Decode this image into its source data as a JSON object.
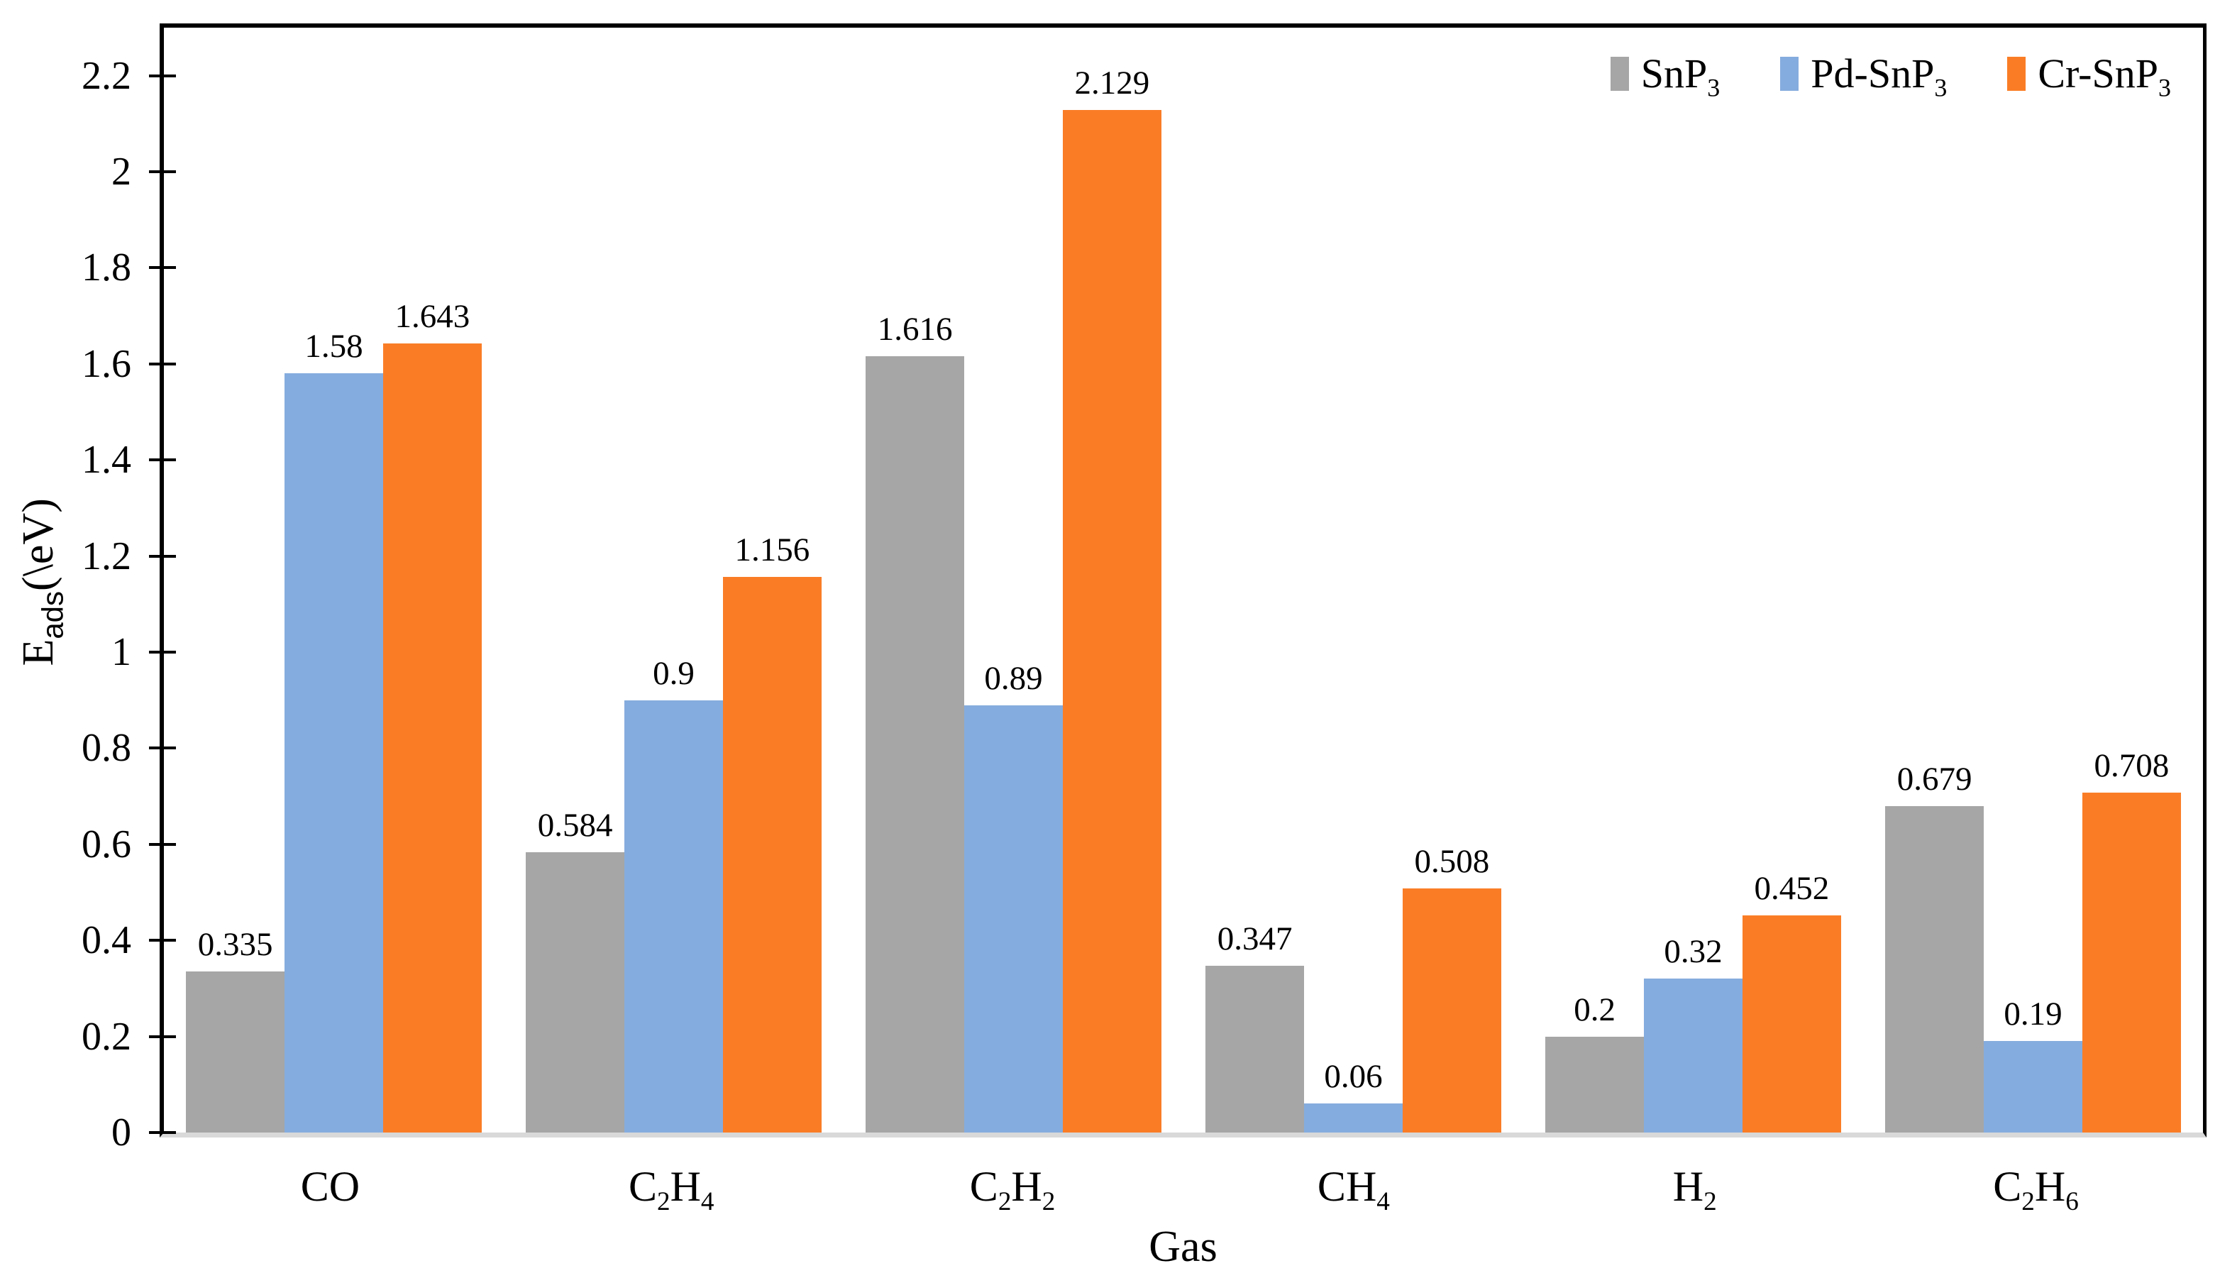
{
  "chart_data": {
    "type": "bar",
    "title": "",
    "xlabel": "Gas",
    "ylabel": "E_ads(\\eV)",
    "ylabel_parts": [
      {
        "text": "E"
      },
      {
        "sub": "ads"
      },
      {
        "text": "(\\eV)"
      }
    ],
    "categories": [
      "CO",
      "C2H4",
      "C2H2",
      "CH4",
      "H2",
      "C2H6"
    ],
    "series": [
      {
        "name": "SnP3",
        "color": "#a6a6a6",
        "values": [
          0.335,
          0.584,
          1.616,
          0.347,
          0.2,
          0.679
        ],
        "labels": [
          "0.335",
          "0.584",
          "1.616",
          "0.347",
          "0.2",
          "0.679"
        ]
      },
      {
        "name": "Pd-SnP3",
        "color": "#85acde",
        "values": [
          1.58,
          0.9,
          0.89,
          0.06,
          0.32,
          0.19
        ],
        "labels": [
          "1.58",
          "0.9",
          "0.89",
          "0.06",
          "0.32",
          "0.19"
        ]
      },
      {
        "name": "Cr-SnP3",
        "color": "#fa7d26",
        "values": [
          1.643,
          1.156,
          2.129,
          0.508,
          0.452,
          0.708
        ],
        "labels": [
          "1.643",
          "1.156",
          "2.129",
          "0.508",
          "0.452",
          "0.708"
        ]
      }
    ],
    "ylim": [
      0,
      2.3
    ],
    "y_ticks": [
      "0",
      "0.2",
      "0.4",
      "0.6",
      "0.8",
      "1",
      "1.2",
      "1.4",
      "1.6",
      "1.8",
      "2",
      "2.2"
    ],
    "grid": false,
    "legend_position": "top-right-inside",
    "colors": {
      "axis_frame": "#000000",
      "baseline": "#d9d9d9",
      "background": "#ffffff",
      "text": "#000000"
    }
  }
}
